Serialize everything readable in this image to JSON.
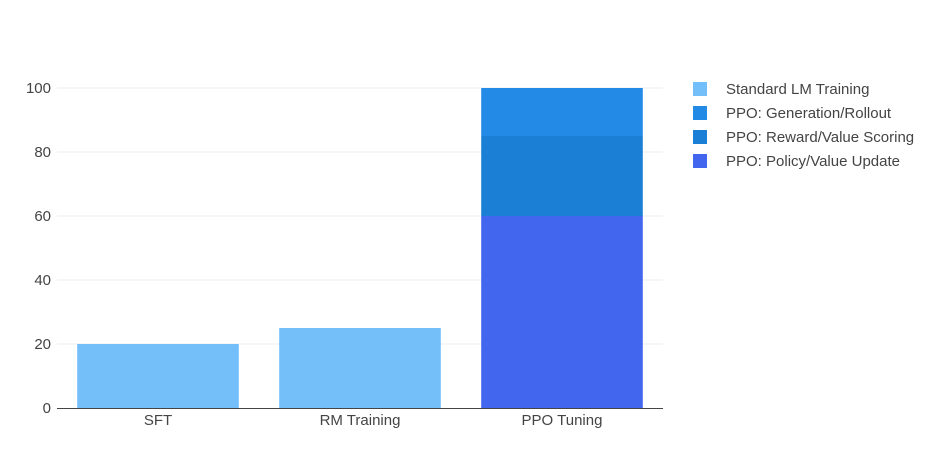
{
  "chart_data": {
    "type": "bar",
    "stacked": true,
    "categories": [
      "SFT",
      "RM Training",
      "PPO Tuning"
    ],
    "series": [
      {
        "name": "Standard LM Training",
        "values": [
          20,
          25,
          0
        ],
        "color": "#74BFFA"
      },
      {
        "name": "PPO: Generation/Rollout",
        "values": [
          0,
          0,
          15
        ],
        "color": "#238BE6"
      },
      {
        "name": "PPO: Reward/Value Scoring",
        "values": [
          0,
          0,
          25
        ],
        "color": "#1C7FD6"
      },
      {
        "name": "PPO: Policy/Value Update",
        "values": [
          0,
          0,
          60
        ],
        "color": "#4266EE"
      }
    ],
    "stack_order": [
      3,
      2,
      1,
      0
    ],
    "ylim": [
      0,
      100
    ],
    "yticks": [
      0,
      20,
      40,
      60,
      80,
      100
    ],
    "grid": true,
    "legend_position": "right",
    "title": "",
    "xlabel": "",
    "ylabel": ""
  }
}
